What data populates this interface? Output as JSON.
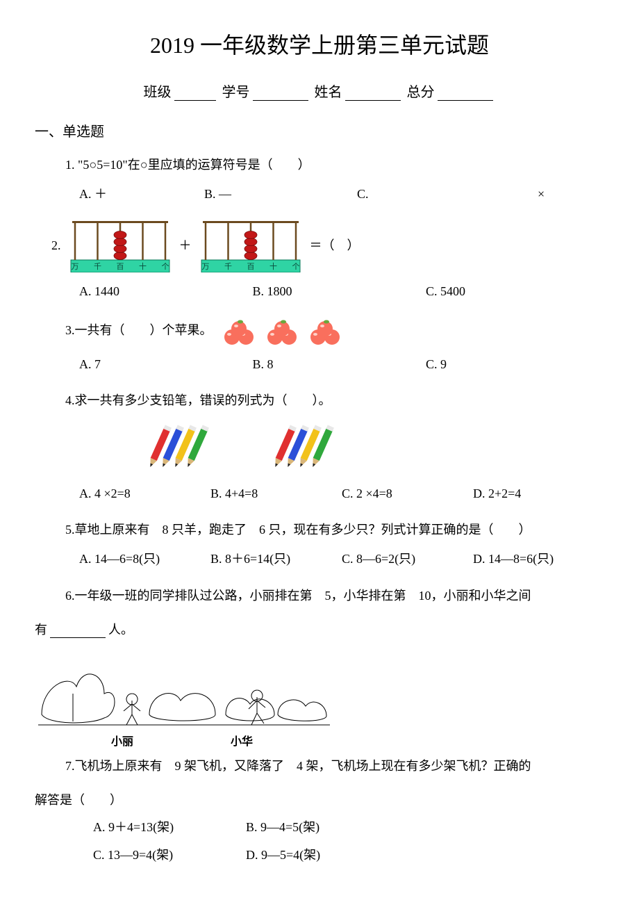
{
  "title": "2019 一年级数学上册第三单元试题",
  "info": {
    "class_label": "班级",
    "id_label": "学号",
    "name_label": "姓名",
    "total_label": "总分"
  },
  "section1": "一、单选题",
  "q1": {
    "stem": "1.  \"5○5=10\"在○里应填的运算符号是（　　）",
    "a": "A. ＋",
    "b": "B. —",
    "c": "C.",
    "c_sym": "×"
  },
  "q2": {
    "prefix": "2.",
    "plus": "＋",
    "eq": "＝（　）",
    "a": "A. 1440",
    "b": "B. 1800",
    "c": "C. 5400",
    "abacus_labels": [
      "万",
      "千",
      "百",
      "十",
      "个"
    ],
    "abacus_bg": "#2fd4a4",
    "abacus_border": "#0a7a5a",
    "bead_fill": "#c21818",
    "bead_stroke": "#7a0d0d",
    "rod_color": "#6b4a1f",
    "abacus1_beads": [
      0,
      0,
      4,
      0,
      0
    ],
    "abacus2_beads": [
      0,
      0,
      4,
      0,
      0
    ]
  },
  "q3": {
    "stem": "3.一共有（　　）个苹果。",
    "a": "A. 7",
    "b": "B. 8",
    "c": "C. 9",
    "apple_fill": "#f96f5d",
    "apple_shine": "#ffd2c8",
    "leaf": "#6aa83c",
    "groups": [
      3,
      3,
      3
    ]
  },
  "q4": {
    "stem": "4.求一共有多少支铅笔，错误的列式为（　　）。",
    "a": "A. 4 ×2=8",
    "b": "B. 4+4=8",
    "c": "C. 2 ×4=8",
    "d": "D. 2+2=4",
    "pencil_colors": [
      "#e03030",
      "#2b4fd8",
      "#f2c21a",
      "#2fa83c"
    ]
  },
  "q5": {
    "stem": "5.草地上原来有　8 只羊，跑走了　6 只，现在有多少只？列式计算正确的是（　　）",
    "a": "A. 14—6=8(只)",
    "b": "B. 8＋6=14(只)",
    "c": "C. 8—6=2(只)",
    "d": "D. 14—8=6(只)"
  },
  "q6": {
    "stem_a": "6.一年级一班的同学排队过公路，小丽排在第　5，小华排在第　10，小丽和小华之间",
    "stem_b_prefix": "有",
    "stem_b_suffix": "人。",
    "label_li": "小丽",
    "label_hua": "小华"
  },
  "q7": {
    "stem": "7.飞机场上原来有　9 架飞机，又降落了　4 架，飞机场上现在有多少架飞机？正确的",
    "stem2": "解答是（　　）",
    "a": "A. 9＋4=13(架)",
    "b": "B. 9—4=5(架)",
    "c": "C. 13—9=4(架)",
    "d": "D. 9—5=4(架)"
  }
}
